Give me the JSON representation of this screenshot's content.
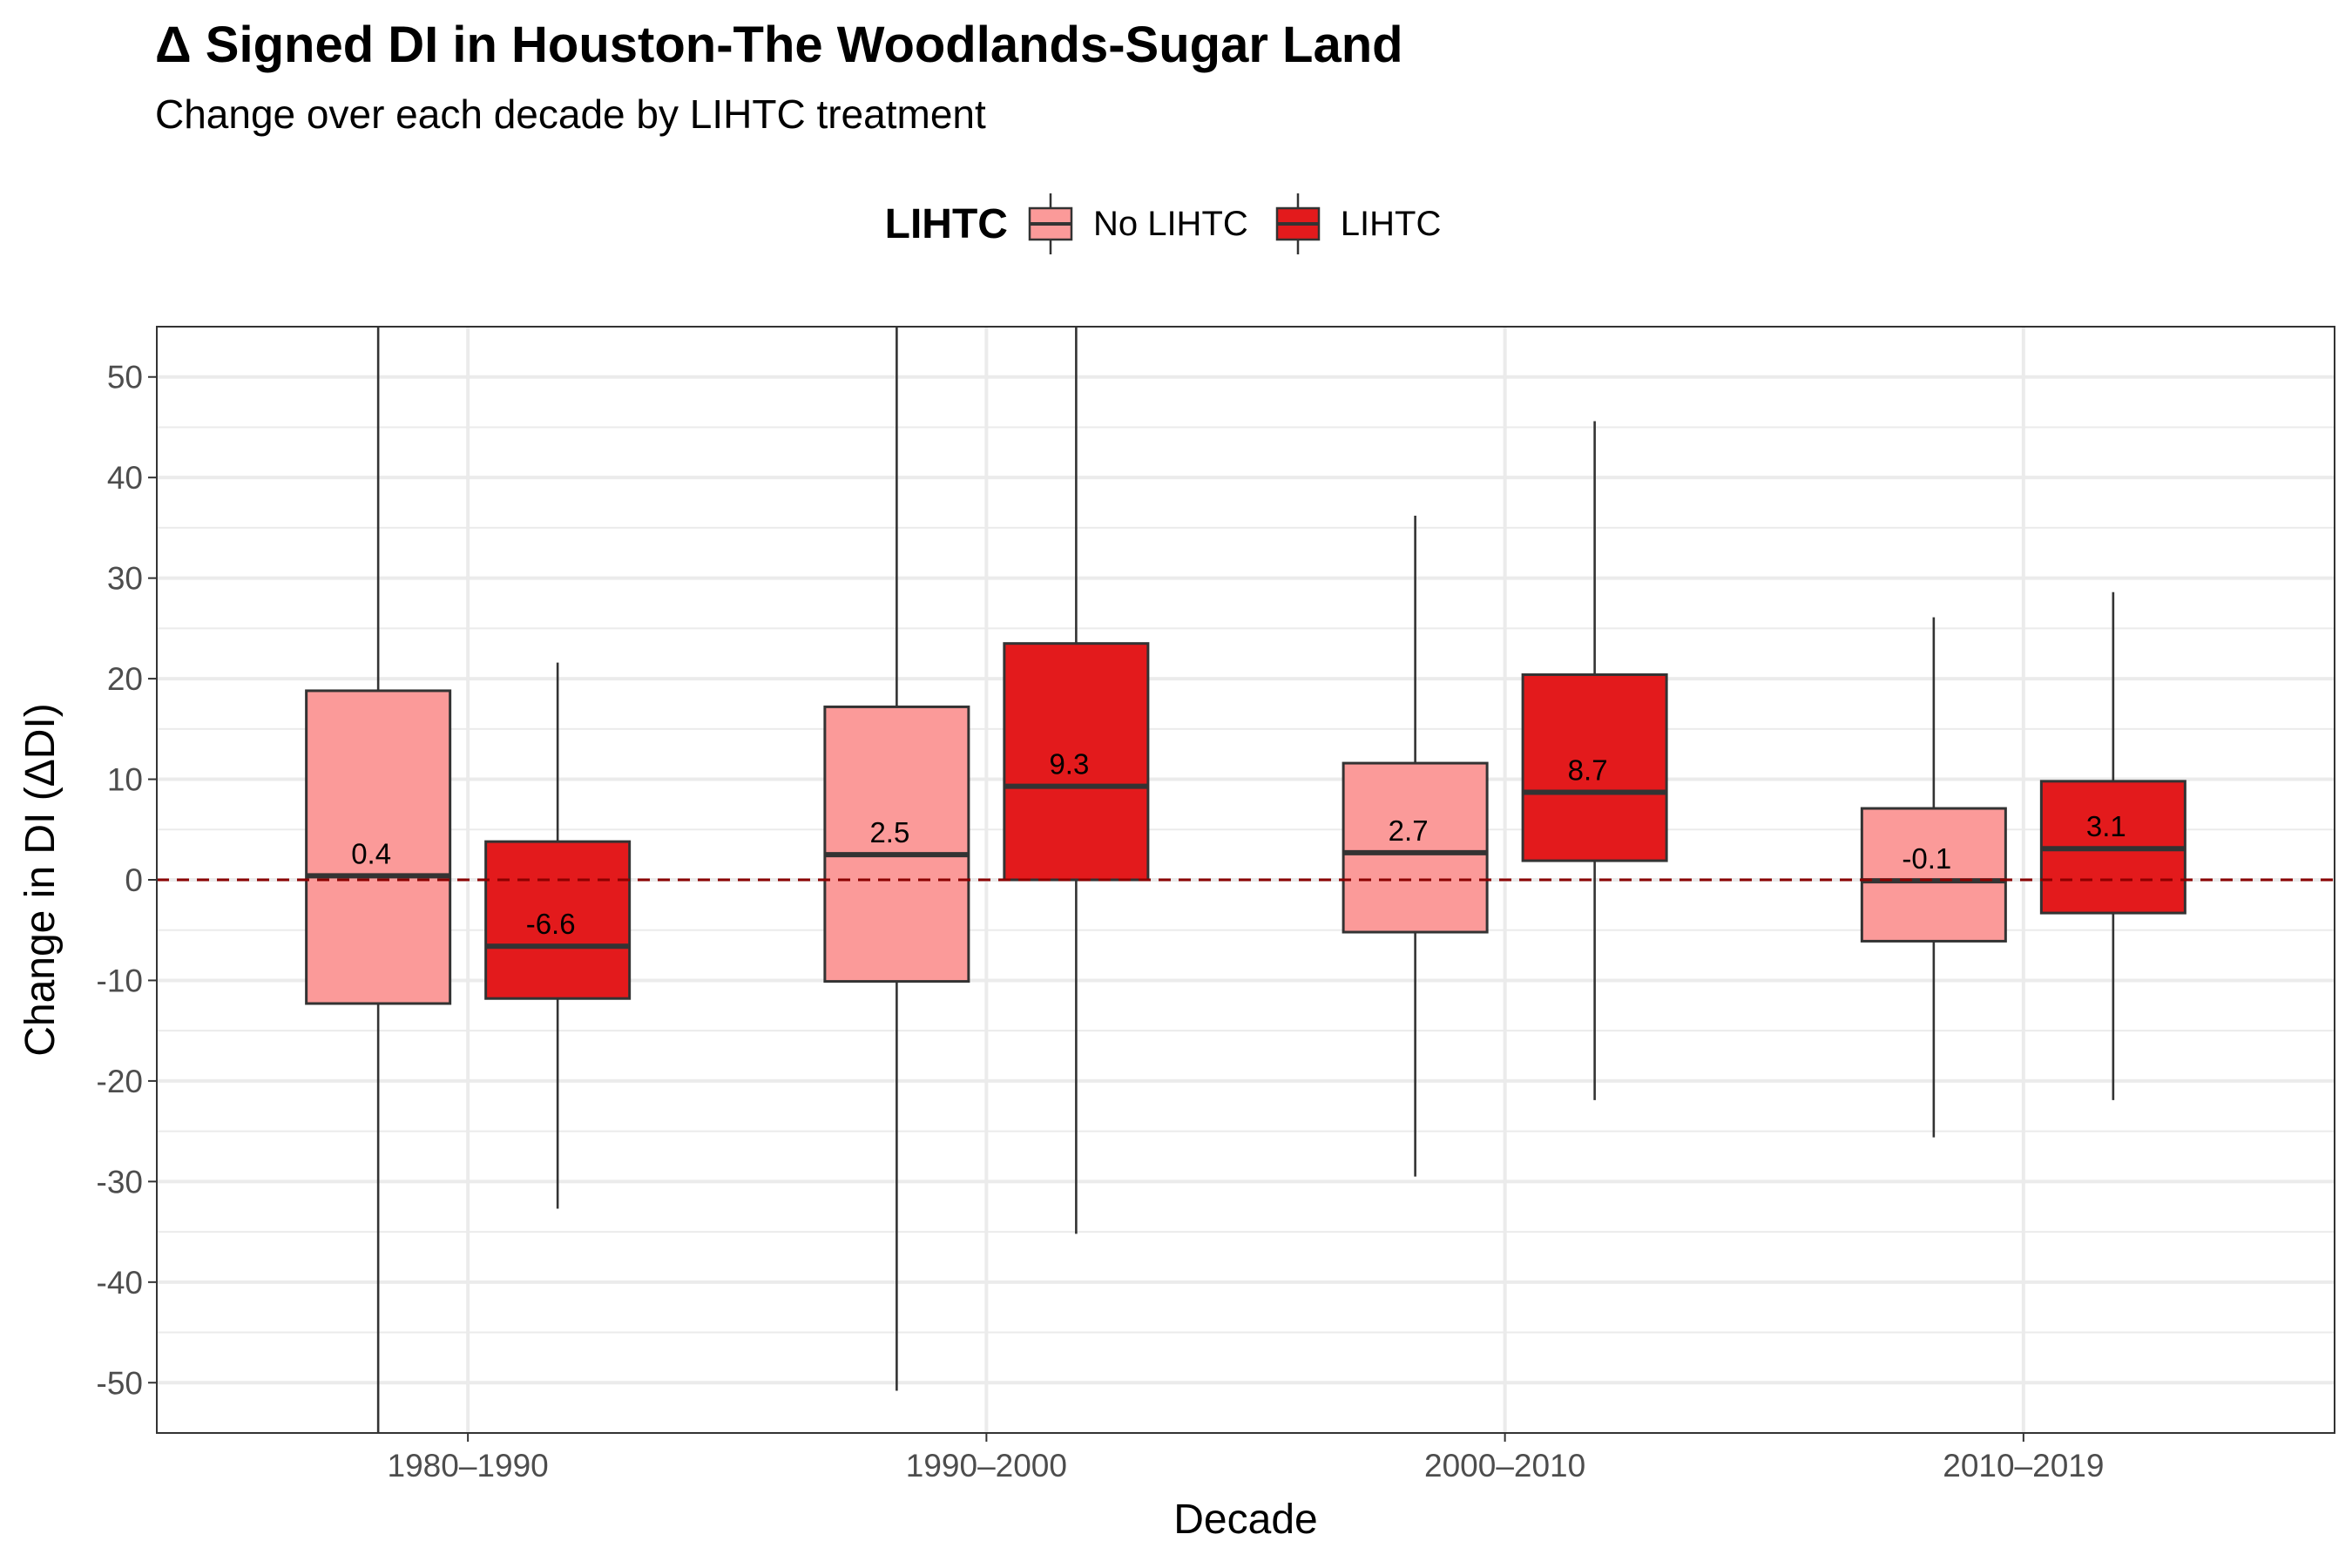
{
  "chart_data": {
    "type": "box",
    "title": "Δ Signed DI in Houston-The Woodlands-Sugar Land",
    "subtitle": "Change over each decade by LIHTC treatment",
    "xlabel": "Decade",
    "ylabel": "Change in DI (ΔDI)",
    "ylim": [
      -55,
      55
    ],
    "yticks": [
      50,
      40,
      30,
      20,
      10,
      0,
      -10,
      -20,
      -30,
      -40,
      -50
    ],
    "ytick_labels": [
      "50",
      "40",
      "30",
      "20",
      "10",
      "0",
      "-10",
      "-20",
      "-30",
      "-40",
      "-50"
    ],
    "categories": [
      "1980–1990",
      "1990–2000",
      "2000–2010",
      "2010–2019"
    ],
    "legend": {
      "title": "LIHTC",
      "position": "top",
      "entries": [
        {
          "label": "No LIHTC",
          "color": "#fb9a99"
        },
        {
          "label": "LIHTC",
          "color": "#e31a1c"
        }
      ]
    },
    "reference_line": {
      "y": 0,
      "style": "dashed",
      "color": "#8b0000"
    },
    "grid": true,
    "series": [
      {
        "name": "No LIHTC",
        "color": "#fb9a99",
        "boxes": [
          {
            "lower_whisker": -55,
            "q1": -12.3,
            "median": 0.4,
            "q3": 18.8,
            "upper_whisker": 55,
            "label": "0.4"
          },
          {
            "lower_whisker": -50.8,
            "q1": -10.1,
            "median": 2.5,
            "q3": 17.2,
            "upper_whisker": 55,
            "label": "2.5"
          },
          {
            "lower_whisker": -29.5,
            "q1": -5.2,
            "median": 2.7,
            "q3": 11.6,
            "upper_whisker": 36.2,
            "label": "2.7"
          },
          {
            "lower_whisker": -25.6,
            "q1": -6.1,
            "median": -0.1,
            "q3": 7.1,
            "upper_whisker": 26.1,
            "label": "-0.1"
          }
        ]
      },
      {
        "name": "LIHTC",
        "color": "#e31a1c",
        "boxes": [
          {
            "lower_whisker": -32.7,
            "q1": -11.8,
            "median": -6.6,
            "q3": 3.8,
            "upper_whisker": 21.6,
            "label": "-6.6"
          },
          {
            "lower_whisker": -35.2,
            "q1": 0.0,
            "median": 9.3,
            "q3": 23.5,
            "upper_whisker": 55,
            "label": "9.3"
          },
          {
            "lower_whisker": -21.9,
            "q1": 1.9,
            "median": 8.7,
            "q3": 20.4,
            "upper_whisker": 45.6,
            "label": "8.7"
          },
          {
            "lower_whisker": -21.9,
            "q1": -3.3,
            "median": 3.1,
            "q3": 9.8,
            "upper_whisker": 28.6,
            "label": "3.1"
          }
        ]
      }
    ]
  }
}
